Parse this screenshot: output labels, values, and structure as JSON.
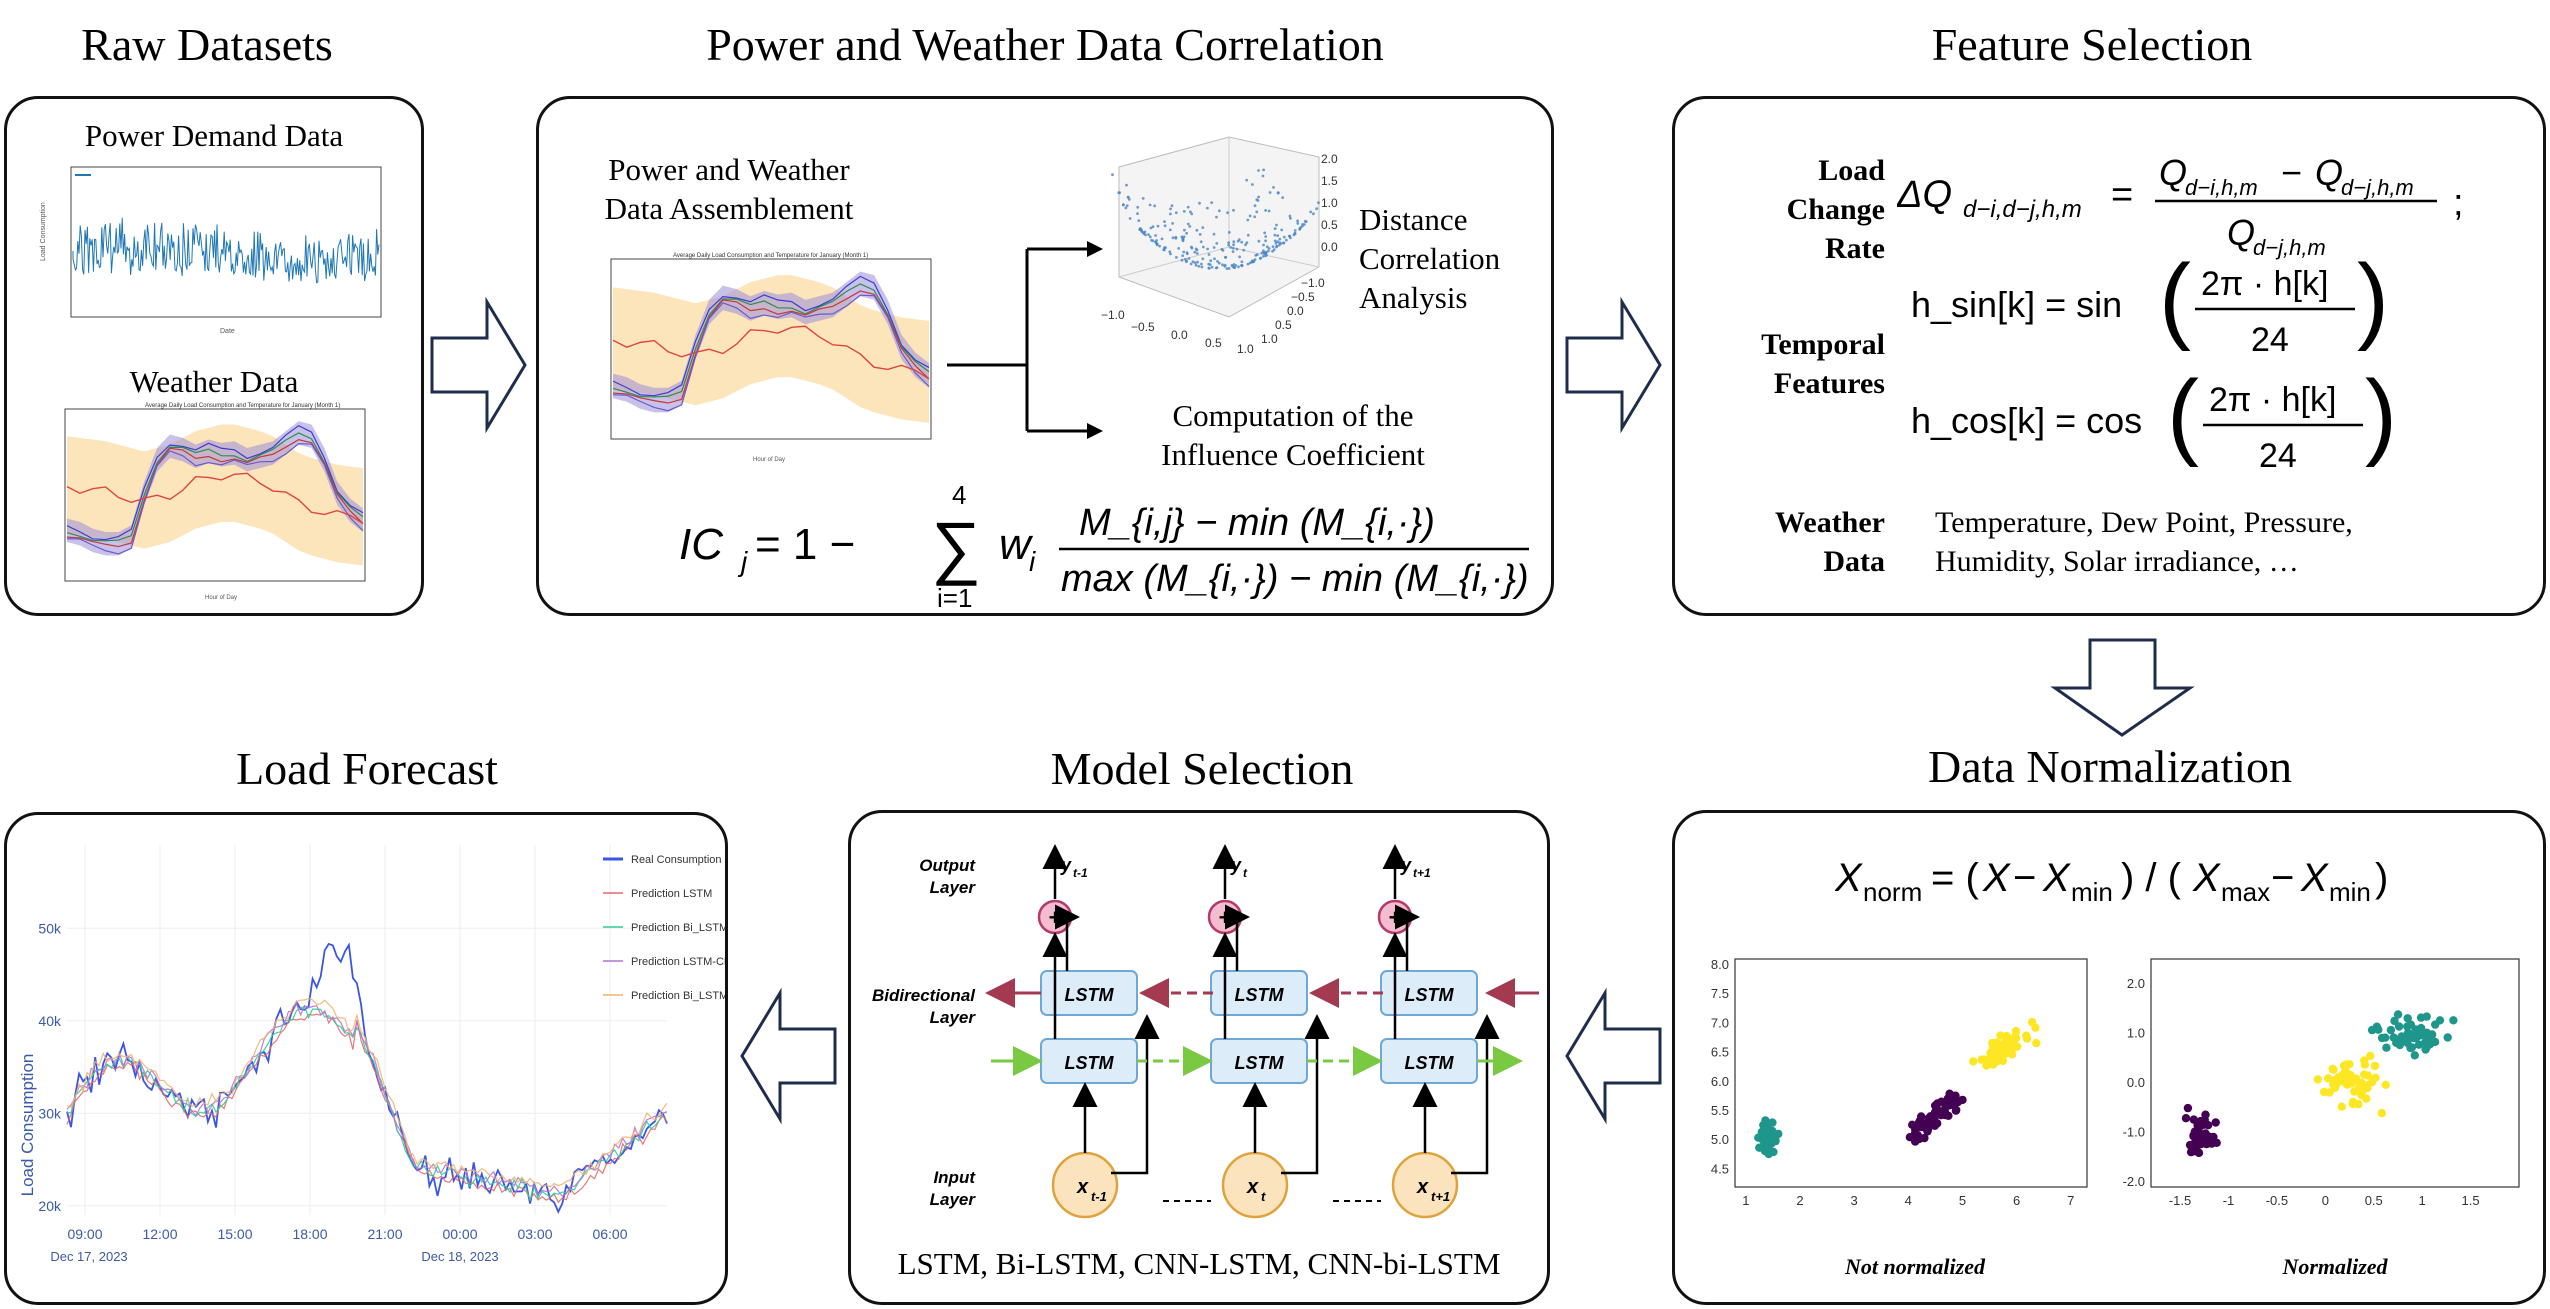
{
  "sections": {
    "raw": "Raw Datasets",
    "corr": "Power and Weather Data Correlation",
    "feat": "Feature Selection",
    "norm": "Data Normalization",
    "model": "Model Selection",
    "forecast": "Load Forecast"
  },
  "raw": {
    "power_label": "Power Demand Data",
    "weather_label": "Weather Data"
  },
  "corr": {
    "assembly_label_1": "Power and Weather",
    "assembly_label_2": "Data Assemblement",
    "distance_1": "Distance",
    "distance_2": "Correlation",
    "distance_3": "Analysis",
    "ic_1": "Computation of the",
    "ic_2": "Influence Coefficient",
    "formula_lhs": "IC",
    "formula_sub": "j",
    "formula_rest": " = 1 − ",
    "sum_top": "4",
    "sum_bottom": "i=1",
    "w": "w",
    "w_sub": "i",
    "num": "M_{i,j} − min (M_{i,·})",
    "den": "max (M_{i,·}) − min (M_{i,·})"
  },
  "feat": {
    "load_label_1": "Load",
    "load_label_2": "Change Rate",
    "temporal_label_1": "Temporal",
    "temporal_label_2": "Features",
    "weather_label_1": "Weather",
    "weather_label_2": "Data",
    "weather_text_1": "Temperature, Dew Point, Pressure,",
    "weather_text_2": "Humidity, Solar irradiance, …",
    "hsin": "h_sin[k] = sin",
    "hcos": "h_cos[k] = cos",
    "frac_num": "2π · h[k]",
    "frac_den": "24"
  },
  "norm": {
    "formula": "X",
    "left_caption": "Not normalized",
    "right_caption": "Normalized"
  },
  "model": {
    "output_layer_1": "Output",
    "output_layer_2": "Layer",
    "bidir_layer_1": "Bidirectional",
    "bidir_layer_2": "Layer",
    "input_layer_1": "Input",
    "input_layer_2": "Layer",
    "cell": "LSTM",
    "plus": "+",
    "models_text": "LSTM, Bi-LSTM, CNN-LSTM, CNN-bi-LSTM"
  },
  "forecast": {
    "ylabel": "Load Consumption",
    "yticks": [
      "20k",
      "30k",
      "40k",
      "50k"
    ],
    "xticks": [
      "09:00",
      "12:00",
      "15:00",
      "18:00",
      "21:00",
      "00:00",
      "03:00",
      "06:00"
    ],
    "dates": [
      "Dec 17, 2023",
      "Dec 18, 2023"
    ],
    "legend": [
      "Real Consumption",
      "Prediction LSTM",
      "Prediction Bi_LSTM",
      "Prediction LSTM-CNN",
      "Prediction Bi_LSTM-CNN"
    ]
  },
  "colors": {
    "arrow_stroke": "#1f2d4d",
    "teal": "#1f968b",
    "purple": "#440154",
    "yellow": "#fde725",
    "lstm_fill": "#dcecf8",
    "input_fill": "#fbe3bd",
    "plus_fill": "#f5bcd0"
  }
}
